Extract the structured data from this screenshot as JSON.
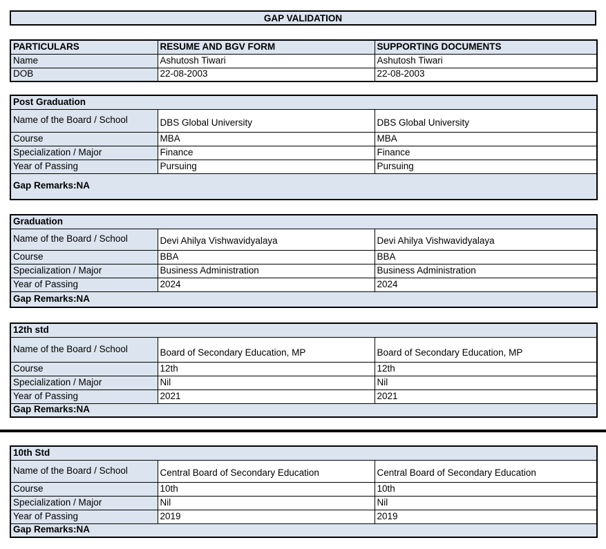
{
  "title": "GAP VALIDATION",
  "identity_table": {
    "headers": [
      "PARTICULARS",
      "RESUME AND BGV FORM",
      "SUPPORTING DOCUMENTS"
    ],
    "rows": [
      {
        "label": "Name",
        "resume": "Ashutosh Tiwari",
        "supporting": "Ashutosh Tiwari"
      },
      {
        "label": "DOB",
        "resume": "22-08-2003",
        "supporting": "22-08-2003"
      }
    ]
  },
  "row_labels": {
    "board": "Name of the Board / School",
    "course": "Course",
    "specialization": "Specialization / Major",
    "year": "Year of Passing"
  },
  "sections": [
    {
      "title": "Post Graduation",
      "board": [
        "DBS Global University",
        "DBS Global University"
      ],
      "course": [
        "MBA",
        "MBA"
      ],
      "specialization": [
        "Finance",
        "Finance"
      ],
      "year": [
        "Pursuing",
        "Pursuing"
      ],
      "gap_remarks": "Gap Remarks:NA"
    },
    {
      "title": "Graduation",
      "board": [
        "Devi Ahilya Vishwavidyalaya",
        "Devi Ahilya Vishwavidyalaya"
      ],
      "course": [
        "BBA",
        "BBA"
      ],
      "specialization": [
        "Business Administration",
        "Business Administration"
      ],
      "year": [
        "2024",
        "2024"
      ],
      "gap_remarks": "Gap Remarks:NA"
    },
    {
      "title": "12th std",
      "board": [
        "Board of Secondary Education, MP",
        "Board of Secondary Education, MP"
      ],
      "course": [
        "12th",
        "12th"
      ],
      "specialization": [
        "Nil",
        "Nil"
      ],
      "year": [
        "2021",
        "2021"
      ],
      "gap_remarks": "Gap Remarks:NA"
    },
    {
      "title": "10th Std",
      "board": [
        "Central Board of Secondary Education",
        "Central Board of Secondary Education"
      ],
      "course": [
        "10th",
        "10th"
      ],
      "specialization": [
        "Nil",
        "Nil"
      ],
      "year": [
        "2019",
        "2019"
      ],
      "gap_remarks": "Gap Remarks:NA"
    }
  ],
  "colors": {
    "cell_fill": "#dbe4ef",
    "border": "#000000",
    "page_background": "#ffffff",
    "text": "#000000"
  }
}
